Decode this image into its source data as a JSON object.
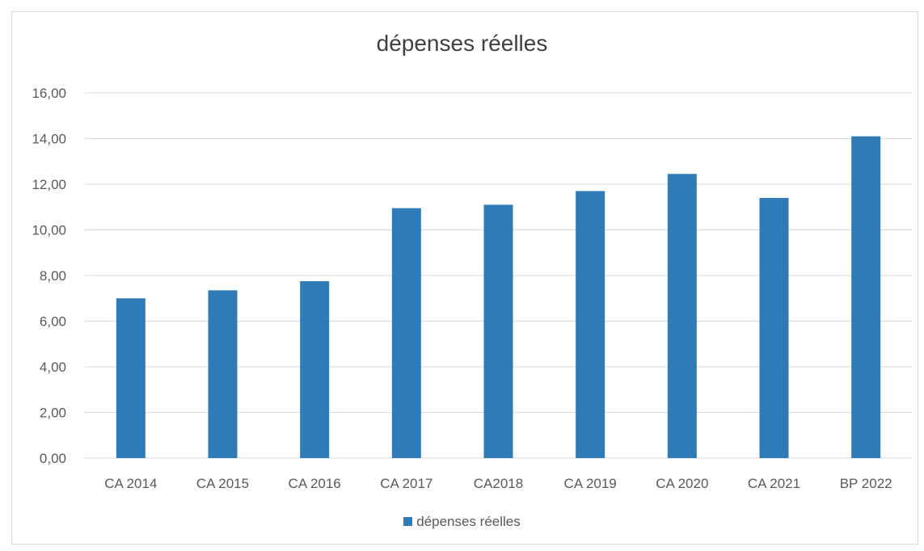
{
  "chart_data": {
    "type": "bar",
    "title": "dépenses réelles",
    "categories": [
      "CA 2014",
      "CA 2015",
      "CA 2016",
      "CA 2017",
      "CA2018",
      "CA 2019",
      "CA 2020",
      "CA 2021",
      "BP 2022"
    ],
    "series": [
      {
        "name": "dépenses réelles",
        "values": [
          7.0,
          7.35,
          7.75,
          10.95,
          11.1,
          11.7,
          12.45,
          11.4,
          14.1
        ]
      }
    ],
    "ylim": [
      0,
      16
    ],
    "yticks": [
      "0,00",
      "2,00",
      "4,00",
      "6,00",
      "8,00",
      "10,00",
      "12,00",
      "14,00",
      "16,00"
    ],
    "grid": true,
    "legend_position": "bottom",
    "colors": {
      "bar": "#2e7bb7",
      "grid": "#d9d9d9",
      "text": "#595959"
    }
  }
}
